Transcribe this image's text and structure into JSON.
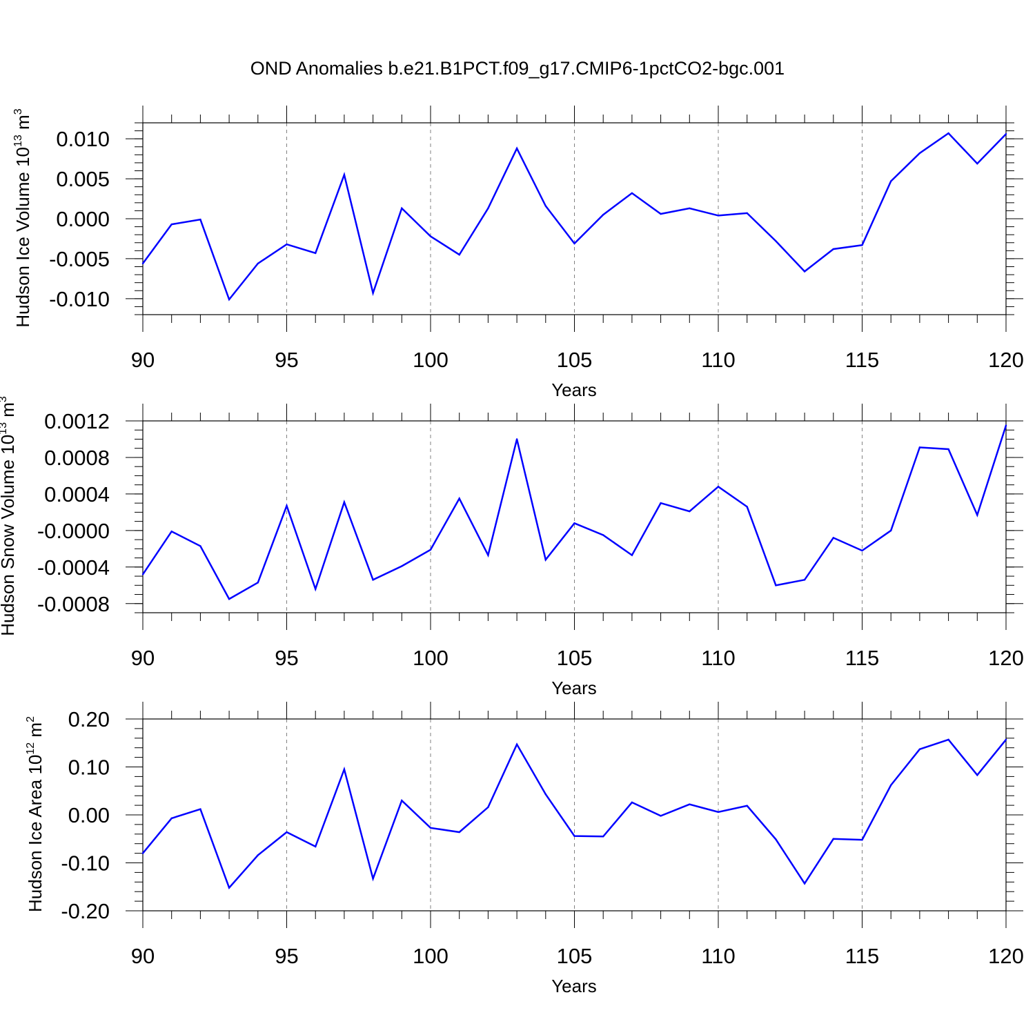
{
  "figure": {
    "title": "OND Anomalies b.e21.B1PCT.f09_g17.CMIP6-1pctCO2-bgc.001"
  },
  "chart_data": [
    {
      "type": "line",
      "title": "",
      "ylabel": {
        "main": "Hudson Ice Volume 10",
        "sup": "13",
        "unit": " m",
        "unit_sup": "3"
      },
      "xlabel": "Years",
      "xlim": [
        90,
        120
      ],
      "ylim": [
        -0.012,
        0.012
      ],
      "xticks": [
        90,
        95,
        100,
        105,
        110,
        115,
        120
      ],
      "xtick_labels": [
        "90",
        "95",
        "100",
        "105",
        "110",
        "115",
        "120"
      ],
      "yticks": [
        -0.01,
        -0.005,
        0,
        0.005,
        0.01
      ],
      "ytick_labels": [
        "-0.010",
        "-0.005",
        "0.000",
        "0.005",
        "0.010"
      ],
      "minor_y_step": 0.001,
      "grid": "vertical dashed at major x ticks",
      "line_color": "#0000ff",
      "x": [
        90,
        91,
        92,
        93,
        94,
        95,
        96,
        97,
        98,
        99,
        100,
        101,
        102,
        103,
        104,
        105,
        106,
        107,
        108,
        109,
        110,
        111,
        112,
        113,
        114,
        115,
        116,
        117,
        118,
        119,
        120
      ],
      "values": [
        -0.0056,
        -0.0007,
        -0.0001,
        -0.0101,
        -0.0056,
        -0.0032,
        -0.0043,
        0.0055,
        -0.0093,
        0.0013,
        -0.0022,
        -0.0045,
        0.0013,
        0.0088,
        0.0016,
        -0.0031,
        0.0005,
        0.0032,
        0.0006,
        0.0013,
        0.0004,
        0.0007,
        -0.0028,
        -0.0066,
        -0.0038,
        -0.0033,
        0.0047,
        0.0082,
        0.0107,
        0.0069,
        0.0106
      ]
    },
    {
      "type": "line",
      "title": "",
      "ylabel": {
        "main": "Hudson Snow Volume 10",
        "sup": "13",
        "unit": " m",
        "unit_sup": "3"
      },
      "xlabel": "Years",
      "xlim": [
        90,
        120
      ],
      "ylim": [
        -0.0009,
        0.0012
      ],
      "xticks": [
        90,
        95,
        100,
        105,
        110,
        115,
        120
      ],
      "xtick_labels": [
        "90",
        "95",
        "100",
        "105",
        "110",
        "115",
        "120"
      ],
      "yticks": [
        -0.0008,
        -0.0004,
        0,
        0.0004,
        0.0008,
        0.0012
      ],
      "ytick_labels": [
        "-0.0008",
        "-0.0004",
        "-0.0000",
        "0.0004",
        "0.0008",
        "0.0012"
      ],
      "minor_y_step": 0.0001,
      "grid": "vertical dashed at major x ticks",
      "line_color": "#0000ff",
      "x": [
        90,
        91,
        92,
        93,
        94,
        95,
        96,
        97,
        98,
        99,
        100,
        101,
        102,
        103,
        104,
        105,
        106,
        107,
        108,
        109,
        110,
        111,
        112,
        113,
        114,
        115,
        116,
        117,
        118,
        119,
        120
      ],
      "values": [
        -0.00048,
        -1e-05,
        -0.00017,
        -0.00075,
        -0.00057,
        0.00027,
        -0.00064,
        0.00031,
        -0.00054,
        -0.00039,
        -0.00021,
        0.00035,
        -0.00027,
        0.001,
        -0.00032,
        8e-05,
        -5e-05,
        -0.00027,
        0.0003,
        0.00021,
        0.00048,
        0.00026,
        -0.0006,
        -0.00054,
        -8e-05,
        -0.00022,
        0.0,
        0.00091,
        0.00089,
        0.00017,
        0.00115
      ]
    },
    {
      "type": "line",
      "title": "",
      "ylabel": {
        "main": "Hudson Ice Area 10",
        "sup": "12",
        "unit": " m",
        "unit_sup": "2"
      },
      "xlabel": "Years",
      "xlim": [
        90,
        120
      ],
      "ylim": [
        -0.2,
        0.2
      ],
      "xticks": [
        90,
        95,
        100,
        105,
        110,
        115,
        120
      ],
      "xtick_labels": [
        "90",
        "95",
        "100",
        "105",
        "110",
        "115",
        "120"
      ],
      "yticks": [
        -0.2,
        -0.1,
        0,
        0.1,
        0.2
      ],
      "ytick_labels": [
        "-0.20",
        "-0.10",
        "0.00",
        "0.10",
        "0.20"
      ],
      "minor_y_step": 0.02,
      "grid": "vertical dashed at major x ticks",
      "line_color": "#0000ff",
      "x": [
        90,
        91,
        92,
        93,
        94,
        95,
        96,
        97,
        98,
        99,
        100,
        101,
        102,
        103,
        104,
        105,
        106,
        107,
        108,
        109,
        110,
        111,
        112,
        113,
        114,
        115,
        116,
        117,
        118,
        119,
        120
      ],
      "values": [
        -0.08,
        -0.007,
        0.012,
        -0.152,
        -0.084,
        -0.036,
        -0.066,
        0.095,
        -0.133,
        0.03,
        -0.027,
        -0.036,
        0.016,
        0.147,
        0.043,
        -0.044,
        -0.045,
        0.026,
        -0.002,
        0.022,
        0.006,
        0.019,
        -0.051,
        -0.143,
        -0.05,
        -0.052,
        0.062,
        0.137,
        0.157,
        0.083,
        0.157
      ]
    }
  ]
}
